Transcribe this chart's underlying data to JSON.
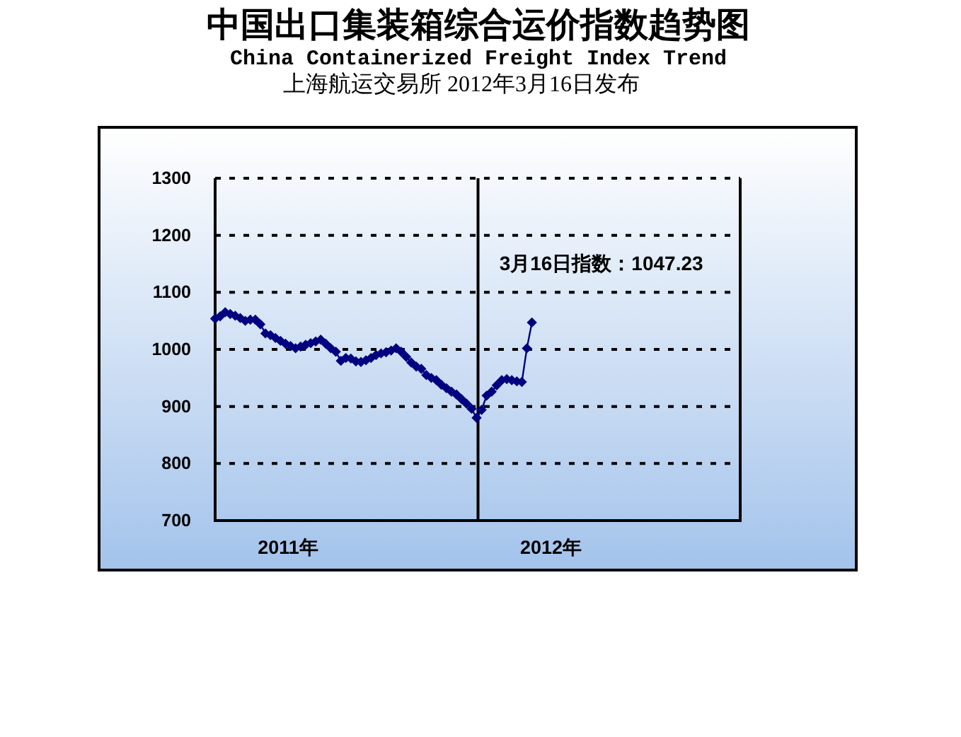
{
  "chart_data": {
    "type": "line",
    "title": "中国出口集装箱综合运价指数趋势图",
    "subtitle": "China Containerized Freight Index Trend",
    "annotations": [
      "上海航运交易所 2012年3月16日发布",
      {
        "text": "3月16日指数：1047.23",
        "x": "2012-03-16",
        "y": 1047.23
      }
    ],
    "x": [
      "2010-12-31",
      "2011-01-07",
      "2011-01-14",
      "2011-01-21",
      "2011-01-28",
      "2011-02-04",
      "2011-02-11",
      "2011-02-18",
      "2011-02-25",
      "2011-03-04",
      "2011-03-11",
      "2011-03-18",
      "2011-03-25",
      "2011-04-01",
      "2011-04-08",
      "2011-04-15",
      "2011-04-22",
      "2011-04-29",
      "2011-05-06",
      "2011-05-13",
      "2011-05-20",
      "2011-05-27",
      "2011-06-03",
      "2011-06-10",
      "2011-06-17",
      "2011-06-24",
      "2011-07-01",
      "2011-07-08",
      "2011-07-15",
      "2011-07-22",
      "2011-07-29",
      "2011-08-05",
      "2011-08-12",
      "2011-08-19",
      "2011-08-26",
      "2011-09-02",
      "2011-09-09",
      "2011-09-16",
      "2011-09-23",
      "2011-09-30",
      "2011-10-07",
      "2011-10-14",
      "2011-10-21",
      "2011-10-28",
      "2011-11-04",
      "2011-11-11",
      "2011-11-18",
      "2011-11-25",
      "2011-12-02",
      "2011-12-09",
      "2011-12-16",
      "2011-12-23",
      "2011-12-30",
      "2012-01-06",
      "2012-01-13",
      "2012-01-20",
      "2012-01-27",
      "2012-02-03",
      "2012-02-10",
      "2012-02-17",
      "2012-02-24",
      "2012-03-02",
      "2012-03-09",
      "2012-03-16"
    ],
    "values": [
      1054,
      1058,
      1065,
      1062,
      1059,
      1055,
      1050,
      1052,
      1052,
      1044,
      1028,
      1025,
      1020,
      1015,
      1010,
      1006,
      1002,
      1005,
      1008,
      1011,
      1014,
      1017,
      1010,
      1002,
      996,
      980,
      985,
      984,
      979,
      978,
      981,
      985,
      990,
      993,
      995,
      998,
      1002,
      996,
      987,
      977,
      970,
      966,
      955,
      950,
      946,
      938,
      932,
      926,
      921,
      913,
      905,
      896,
      880,
      894,
      919,
      926,
      937,
      946,
      948,
      946,
      944,
      943,
      1002,
      1047.23
    ],
    "color": "#000080",
    "xlim": [
      "2010-12-31",
      "2012-12-31"
    ],
    "xticks": [
      {
        "value": "2011-04-12",
        "label": "2011年"
      },
      {
        "value": "2012-04-12",
        "label": "2012年"
      }
    ],
    "ylim": [
      700,
      1300
    ],
    "yticks": [
      700,
      800,
      900,
      1000,
      1100,
      1200,
      1300
    ],
    "grid": "y",
    "marker": "diamond",
    "line_style": "solid",
    "ref_lines": [
      {
        "axis": "x",
        "value": "2012-01-01",
        "color": "#000000"
      }
    ]
  }
}
